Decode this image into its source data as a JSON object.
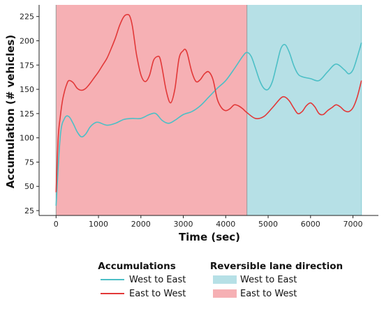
{
  "chart_data": {
    "type": "line",
    "xlabel": "Time (sec)",
    "ylabel": "Accumulation (# vehicles)",
    "xlim": [
      -400,
      7600
    ],
    "ylim": [
      20,
      237
    ],
    "xticks": [
      0,
      1000,
      2000,
      3000,
      4000,
      5000,
      6000,
      7000
    ],
    "yticks": [
      25,
      50,
      75,
      100,
      125,
      150,
      175,
      200,
      225
    ],
    "grid": false,
    "regions": [
      {
        "name": "East to West",
        "x_start": 0,
        "x_end": 4500,
        "color": "#f6b0b4"
      },
      {
        "name": "West to East",
        "x_start": 4500,
        "x_end": 7200,
        "color": "#b6e0e6"
      }
    ],
    "series": [
      {
        "name": "West to East",
        "color": "#4cbfc6",
        "x": [
          0,
          100,
          200,
          300,
          400,
          500,
          600,
          700,
          800,
          900,
          1000,
          1200,
          1400,
          1600,
          1800,
          2000,
          2200,
          2350,
          2500,
          2650,
          2800,
          3000,
          3200,
          3400,
          3600,
          3800,
          4000,
          4200,
          4400,
          4500,
          4600,
          4700,
          4800,
          4900,
          5000,
          5100,
          5200,
          5300,
          5400,
          5500,
          5600,
          5700,
          5800,
          6000,
          6200,
          6400,
          6600,
          6800,
          6900,
          7000,
          7100,
          7200
        ],
        "y": [
          30,
          102,
          120,
          122,
          115,
          106,
          101,
          104,
          111,
          115,
          116,
          113,
          115,
          119,
          120,
          120,
          124,
          125,
          118,
          115,
          118,
          124,
          127,
          133,
          142,
          151,
          159,
          171,
          184,
          188,
          184,
          172,
          159,
          151,
          150,
          158,
          175,
          192,
          196,
          188,
          175,
          166,
          163,
          161,
          159,
          168,
          176,
          170,
          166,
          170,
          183,
          198
        ]
      },
      {
        "name": "East to West",
        "color": "#e23838",
        "x": [
          0,
          50,
          100,
          150,
          200,
          250,
          300,
          400,
          500,
          600,
          700,
          800,
          900,
          1000,
          1100,
          1200,
          1300,
          1400,
          1500,
          1600,
          1700,
          1750,
          1800,
          1850,
          1900,
          2000,
          2100,
          2200,
          2300,
          2400,
          2450,
          2500,
          2600,
          2700,
          2800,
          2900,
          3000,
          3050,
          3100,
          3200,
          3300,
          3400,
          3500,
          3600,
          3700,
          3800,
          3900,
          4000,
          4100,
          4200,
          4300,
          4400,
          4500,
          4700,
          4900,
          5100,
          5300,
          5400,
          5500,
          5600,
          5700,
          5800,
          5900,
          6000,
          6100,
          6200,
          6300,
          6400,
          6500,
          6600,
          6700,
          6800,
          6900,
          7000,
          7100,
          7200
        ],
        "y": [
          44,
          100,
          122,
          138,
          148,
          155,
          159,
          157,
          151,
          149,
          151,
          156,
          162,
          168,
          175,
          182,
          192,
          203,
          216,
          225,
          227,
          224,
          215,
          200,
          185,
          165,
          158,
          164,
          180,
          184,
          182,
          172,
          148,
          136,
          150,
          182,
          190,
          191,
          186,
          168,
          158,
          160,
          166,
          168,
          160,
          140,
          131,
          128,
          130,
          134,
          133,
          130,
          126,
          120,
          122,
          131,
          141,
          142,
          138,
          131,
          125,
          127,
          133,
          136,
          132,
          125,
          124,
          128,
          131,
          134,
          132,
          128,
          127,
          131,
          142,
          159
        ]
      }
    ],
    "legends": [
      {
        "title": "Accumulations",
        "entries": [
          {
            "label": "West to East",
            "color": "#4cbfc6",
            "marker": "line"
          },
          {
            "label": "East to West",
            "color": "#e23838",
            "marker": "line"
          }
        ]
      },
      {
        "title": "Reversible lane direction",
        "entries": [
          {
            "label": "West to East",
            "color": "#b6e0e6",
            "marker": "patch"
          },
          {
            "label": "East to West",
            "color": "#f6b0b4",
            "marker": "patch"
          }
        ]
      }
    ]
  }
}
